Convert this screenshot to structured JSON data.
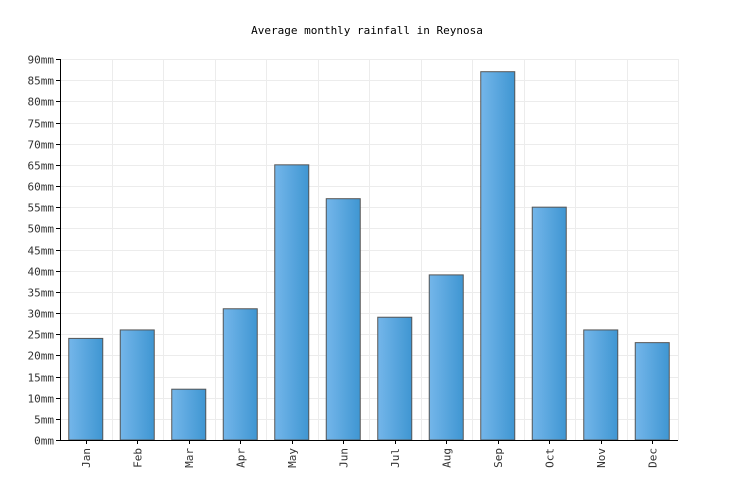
{
  "chart_data": {
    "type": "bar",
    "title": "Average monthly rainfall in Reynosa",
    "xlabel": "",
    "ylabel": "",
    "unit": "mm",
    "categories": [
      "Jan",
      "Feb",
      "Mar",
      "Apr",
      "May",
      "Jun",
      "Jul",
      "Aug",
      "Sep",
      "Oct",
      "Nov",
      "Dec"
    ],
    "values": [
      24,
      26,
      12,
      31,
      65,
      57,
      29,
      39,
      87,
      55,
      26,
      23
    ],
    "ylim": [
      0,
      90
    ],
    "ytick_step": 5,
    "grid": true,
    "legend": "none",
    "bar_color_light": "#74b6ea",
    "bar_color_dark": "#3f96d2",
    "bar_edge_color": "#555555",
    "grid_color": "#ececec"
  }
}
